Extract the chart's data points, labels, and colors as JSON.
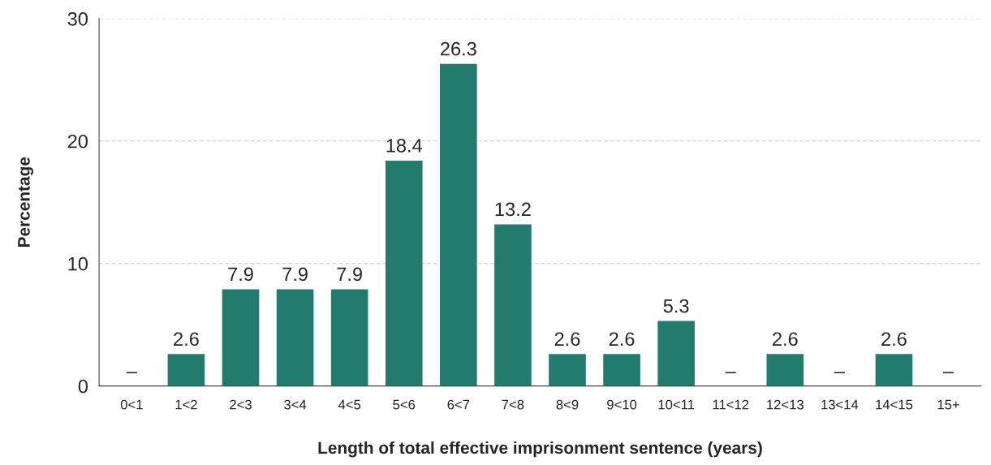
{
  "chart_data": {
    "type": "bar",
    "xlabel": "Length of total effective imprisonment sentence (years)",
    "ylabel": "Percentage",
    "categories": [
      "0<1",
      "1<2",
      "2<3",
      "3<4",
      "4<5",
      "5<6",
      "6<7",
      "7<8",
      "8<9",
      "9<10",
      "10<11",
      "11<12",
      "12<13",
      "13<14",
      "14<15",
      "15+"
    ],
    "values": [
      0,
      2.6,
      7.9,
      7.9,
      7.9,
      18.4,
      26.3,
      13.2,
      2.6,
      2.6,
      5.3,
      0,
      2.6,
      0,
      2.6,
      0
    ],
    "value_labels": [
      "–",
      "2.6",
      "7.9",
      "7.9",
      "7.9",
      "18.4",
      "26.3",
      "13.2",
      "2.6",
      "2.6",
      "5.3",
      "–",
      "2.6",
      "–",
      "2.6",
      "–"
    ],
    "color": "#217c6e",
    "ylim": [
      0,
      30
    ],
    "yticks": [
      0,
      10,
      20,
      30
    ],
    "grid": "y",
    "legend": false
  }
}
